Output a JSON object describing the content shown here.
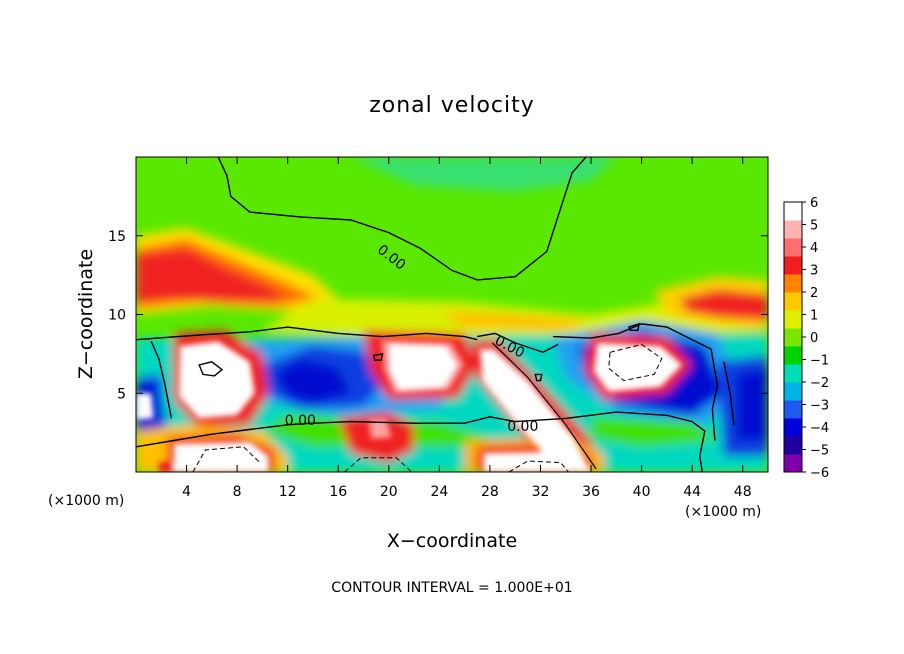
{
  "chart_data": {
    "type": "heatmap",
    "title": "zonal velocity",
    "xlabel": "X−coordinate",
    "ylabel": "Z−coordinate",
    "x_units": "(×1000 m)",
    "y_units": "(×1000 m)",
    "footer": "CONTOUR INTERVAL = 1.000E+01",
    "xlim": [
      0,
      50
    ],
    "ylim": [
      0,
      20
    ],
    "x_ticks": [
      4,
      8,
      12,
      16,
      20,
      24,
      28,
      32,
      36,
      40,
      44,
      48
    ],
    "y_ticks": [
      5,
      10,
      15
    ],
    "colorbar": {
      "min": -6,
      "max": 6,
      "ticks": [
        6,
        5,
        4,
        3,
        2,
        1,
        0,
        -1,
        -2,
        -3,
        -4,
        -5,
        -6
      ],
      "colors": [
        "#7f00a8",
        "#2000a0",
        "#0000d8",
        "#1e5af0",
        "#00b4e6",
        "#00dcb4",
        "#00d200",
        "#78e600",
        "#dcf000",
        "#ffc800",
        "#ff8200",
        "#f01e1e",
        "#ff6e6e",
        "#ffb4b4",
        "#ffffff"
      ]
    },
    "contour_labels": [
      {
        "text": "0.00",
        "x": 20,
        "y": 13.4
      },
      {
        "text": "0.00",
        "x": 29.4,
        "y": 7.7
      },
      {
        "text": "0.00",
        "x": 13,
        "y": 3.0
      },
      {
        "text": "0.00",
        "x": 30.6,
        "y": 2.6
      }
    ],
    "features": [
      {
        "name": "upper-layer",
        "x": [
          0,
          50
        ],
        "z": [
          12,
          20
        ],
        "value": 0.3
      },
      {
        "name": "west-jet",
        "x": 5,
        "z": 12.5,
        "value": 4.5
      },
      {
        "name": "east-jet",
        "x": 47,
        "z": 10.5,
        "value": 4.5
      },
      {
        "name": "west-positive-core",
        "x": 6,
        "z": 6.5,
        "value": 7
      },
      {
        "name": "mid-negative-core",
        "x": 13,
        "z": 5.5,
        "value": -4.5
      },
      {
        "name": "center-positive-core",
        "x": 23,
        "z": 6.8,
        "value": 7
      },
      {
        "name": "east-positive-core",
        "x": 39,
        "z": 6.8,
        "value": 7
      },
      {
        "name": "diagonal-positive-band",
        "x": [
          28,
          36
        ],
        "z": [
          8,
          1
        ],
        "value": 6
      },
      {
        "name": "surface-positive-west",
        "x": 7,
        "z": 0.8,
        "value": 7
      },
      {
        "name": "surface-positive-center",
        "x": 30,
        "z": 0.6,
        "value": 7
      }
    ]
  }
}
